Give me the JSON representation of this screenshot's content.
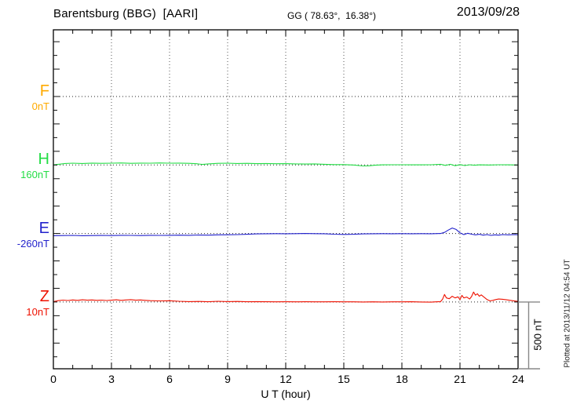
{
  "header": {
    "station_title": "Barentsburg (BBG)  [AARI]",
    "coordinates": "GG ( 78.63°,  16.38°)",
    "date": "2013/09/28"
  },
  "x_axis": {
    "label": "U T (hour)",
    "ticks": [
      0,
      3,
      6,
      9,
      12,
      15,
      18,
      21,
      24
    ]
  },
  "scale_bar": {
    "label": "500 nT"
  },
  "plot_note": "Plotted at 2013/11/12 04:54 UT",
  "chart_data": {
    "type": "line",
    "title": "Barentsburg (BBG) [AARI] magnetogram, 2013/09/28",
    "xlabel": "U T (hour)",
    "x_range": [
      0,
      24
    ],
    "x_ticks": [
      0,
      3,
      6,
      9,
      12,
      15,
      18,
      21,
      24
    ],
    "grid_hours": [
      3,
      6,
      9,
      12,
      15,
      18,
      21
    ],
    "grid": true,
    "legend_position": "left",
    "y_scale": {
      "division_nT": 500,
      "minor_tick_nT": 100
    },
    "series": [
      {
        "name": "F",
        "offset_label": "0nT",
        "color": "#FFAA00",
        "points": []
      },
      {
        "name": "H",
        "offset_label": "160nT",
        "color": "#22DD44",
        "points": [
          [
            0,
            1
          ],
          [
            0.3,
            6
          ],
          [
            0.6,
            11
          ],
          [
            1,
            13
          ],
          [
            1.5,
            11
          ],
          [
            2,
            14
          ],
          [
            2.5,
            12
          ],
          [
            3,
            13
          ],
          [
            3.5,
            15
          ],
          [
            4,
            12
          ],
          [
            4.5,
            14
          ],
          [
            5,
            13
          ],
          [
            5.5,
            15
          ],
          [
            6,
            13
          ],
          [
            6.5,
            14
          ],
          [
            7,
            12
          ],
          [
            7.4,
            9
          ],
          [
            7.7,
            4
          ],
          [
            8,
            8
          ],
          [
            8.5,
            12
          ],
          [
            9,
            13
          ],
          [
            9.5,
            11
          ],
          [
            10,
            12
          ],
          [
            10.5,
            10
          ],
          [
            11,
            11
          ],
          [
            11.5,
            9
          ],
          [
            12,
            10
          ],
          [
            12.5,
            8
          ],
          [
            13,
            7
          ],
          [
            13.5,
            8
          ],
          [
            14,
            5
          ],
          [
            14.5,
            3
          ],
          [
            15,
            3
          ],
          [
            15.5,
            0
          ],
          [
            16,
            -7
          ],
          [
            16.3,
            -6
          ],
          [
            16.6,
            -2
          ],
          [
            17,
            1
          ],
          [
            17.5,
            2
          ],
          [
            18,
            2
          ],
          [
            18.5,
            1
          ],
          [
            19,
            1
          ],
          [
            19.5,
            2
          ],
          [
            20,
            5
          ],
          [
            20.25,
            -3
          ],
          [
            20.5,
            5
          ],
          [
            20.75,
            -5
          ],
          [
            21,
            3
          ],
          [
            21.25,
            -4
          ],
          [
            21.5,
            2
          ],
          [
            21.75,
            -2
          ],
          [
            22,
            1
          ],
          [
            22.5,
            0
          ],
          [
            23,
            2
          ],
          [
            23.5,
            1
          ],
          [
            24,
            0
          ]
        ]
      },
      {
        "name": "E",
        "offset_label": "-260nT",
        "color": "#2222CC",
        "points": [
          [
            0,
            -16
          ],
          [
            0.5,
            -15
          ],
          [
            1,
            -14
          ],
          [
            1.5,
            -16
          ],
          [
            2,
            -15
          ],
          [
            2.5,
            -14
          ],
          [
            3,
            -15
          ],
          [
            3.5,
            -13
          ],
          [
            4,
            -14
          ],
          [
            4.5,
            -15
          ],
          [
            5,
            -13
          ],
          [
            5.5,
            -14
          ],
          [
            6,
            -13
          ],
          [
            6.5,
            -12
          ],
          [
            7,
            -13
          ],
          [
            7.5,
            -11
          ],
          [
            8,
            -12
          ],
          [
            8.5,
            -10
          ],
          [
            9,
            -9
          ],
          [
            9.5,
            -8
          ],
          [
            10,
            -6
          ],
          [
            10.5,
            -3
          ],
          [
            11,
            -2
          ],
          [
            11.5,
            -1
          ],
          [
            12,
            -2
          ],
          [
            12.5,
            -1
          ],
          [
            13,
            0
          ],
          [
            13.5,
            -1
          ],
          [
            14,
            -2
          ],
          [
            14.5,
            -5
          ],
          [
            15,
            -7
          ],
          [
            15.5,
            -6
          ],
          [
            16,
            -3
          ],
          [
            16.5,
            -2
          ],
          [
            17,
            -1
          ],
          [
            17.5,
            -2
          ],
          [
            18,
            -1
          ],
          [
            18.5,
            -2
          ],
          [
            19,
            -1
          ],
          [
            19.5,
            -2
          ],
          [
            20,
            0
          ],
          [
            20.2,
            8
          ],
          [
            20.4,
            25
          ],
          [
            20.6,
            40
          ],
          [
            20.8,
            30
          ],
          [
            21,
            5
          ],
          [
            21.2,
            -8
          ],
          [
            21.4,
            2
          ],
          [
            21.6,
            -5
          ],
          [
            21.8,
            -10
          ],
          [
            22,
            -6
          ],
          [
            22.2,
            -12
          ],
          [
            22.4,
            -8
          ],
          [
            22.6,
            -14
          ],
          [
            22.8,
            -10
          ],
          [
            23,
            -12
          ],
          [
            23.2,
            -8
          ],
          [
            23.5,
            -10
          ],
          [
            23.8,
            -8
          ],
          [
            24,
            -9
          ]
        ]
      },
      {
        "name": "Z",
        "offset_label": "10nT",
        "color": "#EE1100",
        "points": [
          [
            0,
            3
          ],
          [
            0.25,
            10
          ],
          [
            0.5,
            14
          ],
          [
            0.75,
            11
          ],
          [
            1,
            15
          ],
          [
            1.25,
            12
          ],
          [
            1.5,
            16
          ],
          [
            1.75,
            13
          ],
          [
            2,
            15
          ],
          [
            2.25,
            12
          ],
          [
            2.5,
            14
          ],
          [
            2.75,
            11
          ],
          [
            3,
            13
          ],
          [
            3.25,
            16
          ],
          [
            3.5,
            12
          ],
          [
            3.75,
            15
          ],
          [
            4,
            17
          ],
          [
            4.25,
            13
          ],
          [
            4.5,
            15
          ],
          [
            4.75,
            12
          ],
          [
            5,
            10
          ],
          [
            5.5,
            8
          ],
          [
            6,
            9
          ],
          [
            6.5,
            5
          ],
          [
            7,
            3
          ],
          [
            7.5,
            4
          ],
          [
            8,
            2
          ],
          [
            8.5,
            5
          ],
          [
            9,
            3
          ],
          [
            9.5,
            4
          ],
          [
            10,
            2
          ],
          [
            10.5,
            3
          ],
          [
            11,
            2
          ],
          [
            11.5,
            1
          ],
          [
            12,
            2
          ],
          [
            12.5,
            1
          ],
          [
            13,
            2
          ],
          [
            13.5,
            1
          ],
          [
            14,
            1
          ],
          [
            14.5,
            2
          ],
          [
            15,
            1
          ],
          [
            15.5,
            1
          ],
          [
            16,
            0
          ],
          [
            16.5,
            1
          ],
          [
            17,
            0
          ],
          [
            17.5,
            1
          ],
          [
            18,
            1
          ],
          [
            18.5,
            2
          ],
          [
            19,
            0
          ],
          [
            19.5,
            -1
          ],
          [
            19.75,
            1
          ],
          [
            20,
            3
          ],
          [
            20.1,
            20
          ],
          [
            20.2,
            55
          ],
          [
            20.3,
            30
          ],
          [
            20.45,
            24
          ],
          [
            20.6,
            42
          ],
          [
            20.75,
            30
          ],
          [
            20.9,
            38
          ],
          [
            21,
            18
          ],
          [
            21.1,
            48
          ],
          [
            21.2,
            30
          ],
          [
            21.35,
            36
          ],
          [
            21.5,
            22
          ],
          [
            21.6,
            40
          ],
          [
            21.7,
            73
          ],
          [
            21.8,
            50
          ],
          [
            21.9,
            60
          ],
          [
            22,
            42
          ],
          [
            22.1,
            52
          ],
          [
            22.25,
            35
          ],
          [
            22.4,
            18
          ],
          [
            22.55,
            8
          ],
          [
            22.7,
            12
          ],
          [
            22.85,
            18
          ],
          [
            23,
            22
          ],
          [
            23.2,
            20
          ],
          [
            23.4,
            16
          ],
          [
            23.7,
            10
          ],
          [
            24,
            4
          ]
        ]
      }
    ]
  }
}
